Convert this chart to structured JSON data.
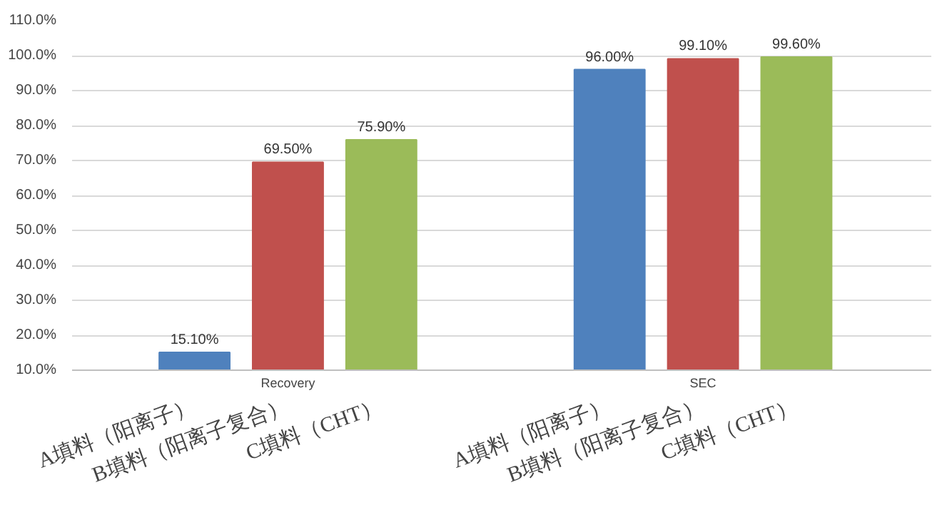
{
  "chart_data": {
    "type": "bar",
    "categories": [
      "Recovery",
      "SEC"
    ],
    "series": [
      {
        "name": "A填料（阳离子）",
        "color": "#4f81bd",
        "values": [
          15.1,
          96.0
        ],
        "value_labels": [
          "15.10%",
          "96.00%"
        ]
      },
      {
        "name": "B填料（阳离子复合）",
        "color": "#c0504d",
        "values": [
          69.5,
          99.1
        ],
        "value_labels": [
          "69.50%",
          "99.10%"
        ]
      },
      {
        "name": "C填料（CHT）",
        "color": "#9bbb59",
        "values": [
          75.9,
          99.6
        ],
        "value_labels": [
          "75.90%",
          "99.60%"
        ]
      }
    ],
    "ylim": [
      10,
      110
    ],
    "yticks": [
      {
        "value": 10,
        "label": "10.0%"
      },
      {
        "value": 20,
        "label": "20.0%"
      },
      {
        "value": 30,
        "label": "30.0%"
      },
      {
        "value": 40,
        "label": "40.0%"
      },
      {
        "value": 50,
        "label": "50.0%"
      },
      {
        "value": 60,
        "label": "60.0%"
      },
      {
        "value": 70,
        "label": "70.0%"
      },
      {
        "value": 80,
        "label": "80.0%"
      },
      {
        "value": 90,
        "label": "90.0%"
      },
      {
        "value": 100,
        "label": "100.0%"
      },
      {
        "value": 110,
        "label": "110.0%"
      }
    ],
    "grid": "y"
  }
}
